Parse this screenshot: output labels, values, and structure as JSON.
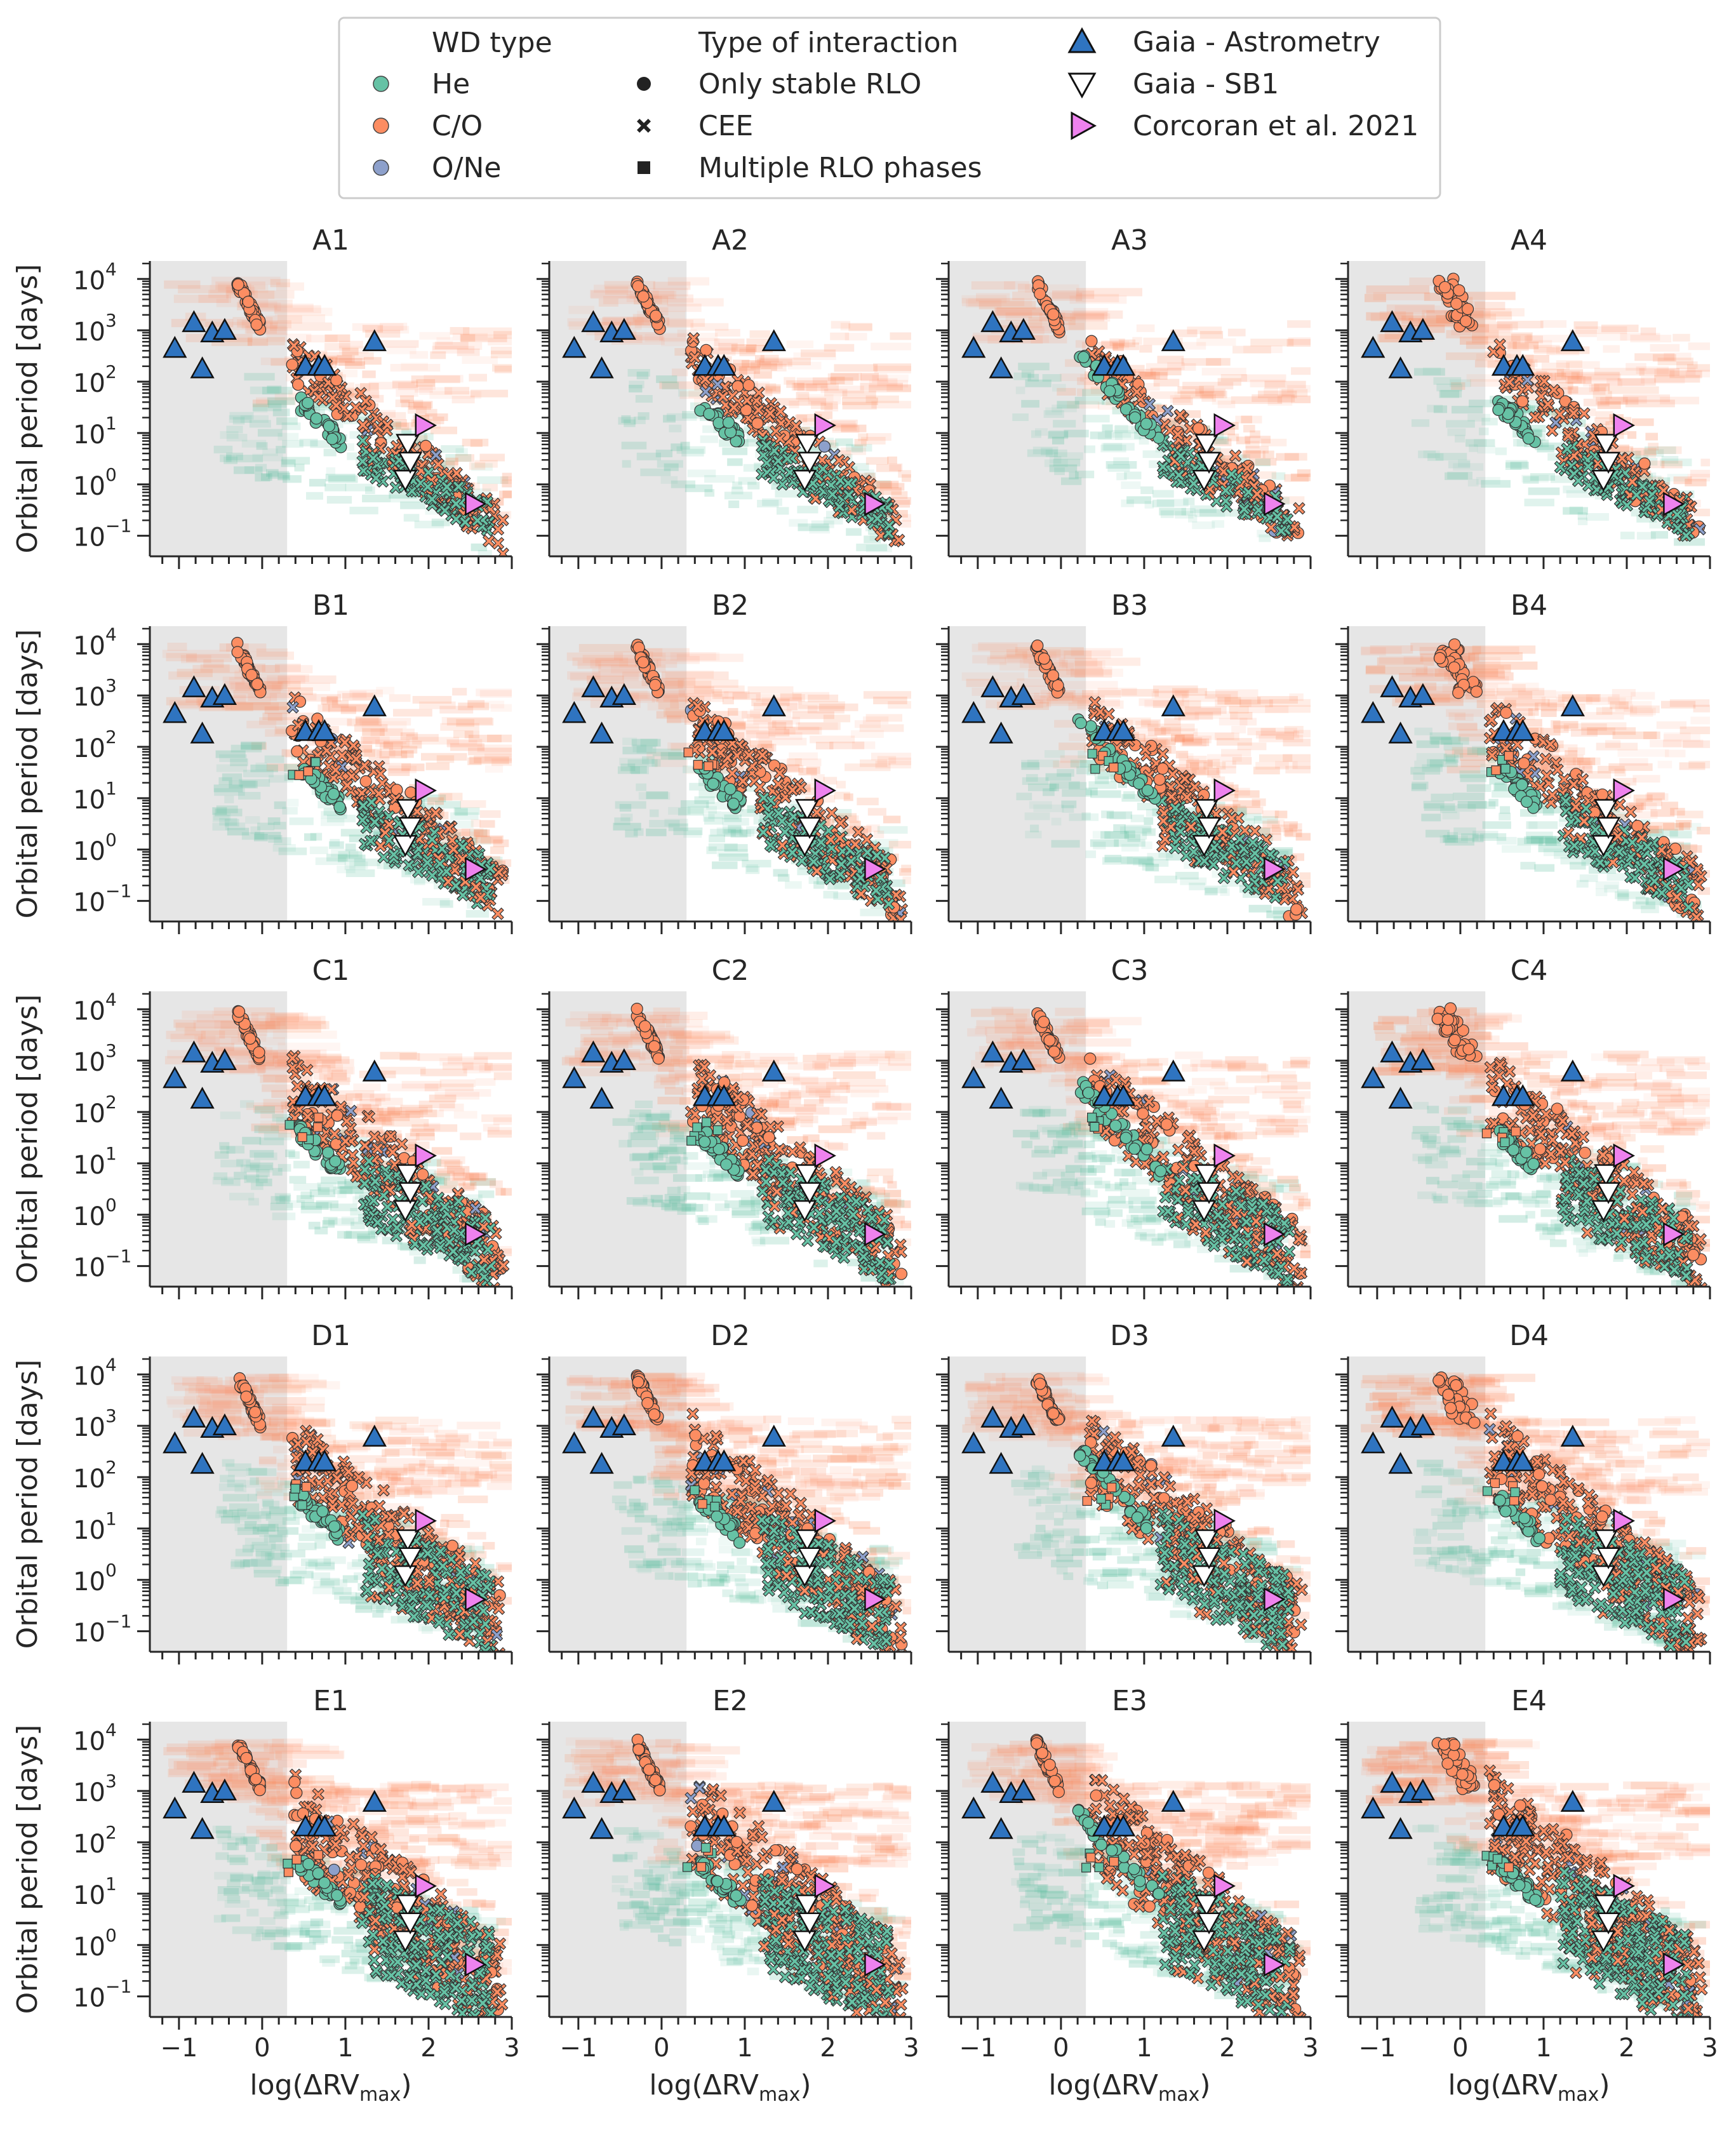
{
  "figure": {
    "ylabel": "Orbital period [days]",
    "xlabel_base": "log(ΔRV",
    "xlabel_sub": "max",
    "xlabel_close": ")"
  },
  "legend": {
    "wd_header": "WD type",
    "wd_types": [
      {
        "label": "He",
        "color": "#66c2a5"
      },
      {
        "label": "C/O",
        "color": "#fc8d62"
      },
      {
        "label": "O/Ne",
        "color": "#8da0cb"
      }
    ],
    "interaction_header": "Type of interaction",
    "interactions": [
      {
        "label": "Only stable RLO",
        "marker": "circle"
      },
      {
        "label": "CEE",
        "marker": "cross"
      },
      {
        "label": "Multiple RLO phases",
        "marker": "square"
      }
    ],
    "observations": [
      {
        "label": "Gaia - Astrometry",
        "marker": "triangle-up",
        "color": "#2f74c0"
      },
      {
        "label": "Gaia - SB1",
        "marker": "triangle-down",
        "color": "#ffffff"
      },
      {
        "label": "Corcoran et al. 2021",
        "marker": "triangle-right",
        "color": "#ee82ee"
      }
    ]
  },
  "chart_data": {
    "type": "scatter",
    "panel_grid": {
      "rows": [
        "A",
        "B",
        "C",
        "D",
        "E"
      ],
      "cols": [
        "1",
        "2",
        "3",
        "4"
      ]
    },
    "panels": [
      "A1",
      "A2",
      "A3",
      "A4",
      "B1",
      "B2",
      "B3",
      "B4",
      "C1",
      "C2",
      "C3",
      "C4",
      "D1",
      "D2",
      "D3",
      "D4",
      "E1",
      "E2",
      "E3",
      "E4"
    ],
    "x_axis": {
      "label": "log(ΔRV_max)",
      "lim": [
        -1.35,
        3.0
      ],
      "ticks": [
        -1,
        0,
        1,
        2,
        3
      ],
      "tick_labels": [
        "−1",
        "0",
        "1",
        "2",
        "3"
      ]
    },
    "y_axis": {
      "label": "Orbital period [days]",
      "scale": "log",
      "lim_log10": [
        -1.4,
        4.35
      ],
      "ticks_log10": [
        -1,
        0,
        1,
        2,
        3,
        4
      ],
      "tick_labels": [
        "10",
        "10",
        "10",
        "10",
        "10",
        "10"
      ],
      "tick_exponents": [
        "−1",
        "0",
        "1",
        "2",
        "3",
        "4"
      ]
    },
    "shaded_region": {
      "x_from": -1.35,
      "x_to": 0.3,
      "color": "#e6e6e6"
    },
    "observed_systems": {
      "gaia_astrometry": {
        "x": [
          -1.05,
          -0.82,
          -0.6,
          -0.45,
          -0.72,
          0.52,
          0.68,
          0.75,
          1.35
        ],
        "log_period": [
          2.65,
          3.15,
          2.95,
          3.0,
          2.25,
          2.3,
          2.3,
          2.3,
          2.78
        ]
      },
      "gaia_sb1": {
        "x": [
          1.75,
          1.72,
          1.78
        ],
        "log_period": [
          0.8,
          0.1,
          0.45
        ]
      },
      "corcoran_2021": {
        "x": [
          1.95,
          2.55
        ],
        "log_period": [
          1.15,
          -0.38
        ]
      }
    },
    "population_trends": {
      "CO_stable_RLO_wide": {
        "x_range": [
          -0.3,
          -0.05
        ],
        "log_period_range": [
          3.0,
          4.0
        ]
      },
      "main_sequence_band": {
        "x_range": [
          0.4,
          2.8
        ],
        "log_period_range": [
          2.5,
          -1.0
        ]
      },
      "He_CEE_band": {
        "x_range": [
          1.2,
          2.7
        ],
        "log_period_range": [
          0.5,
          -1.0
        ]
      }
    }
  }
}
